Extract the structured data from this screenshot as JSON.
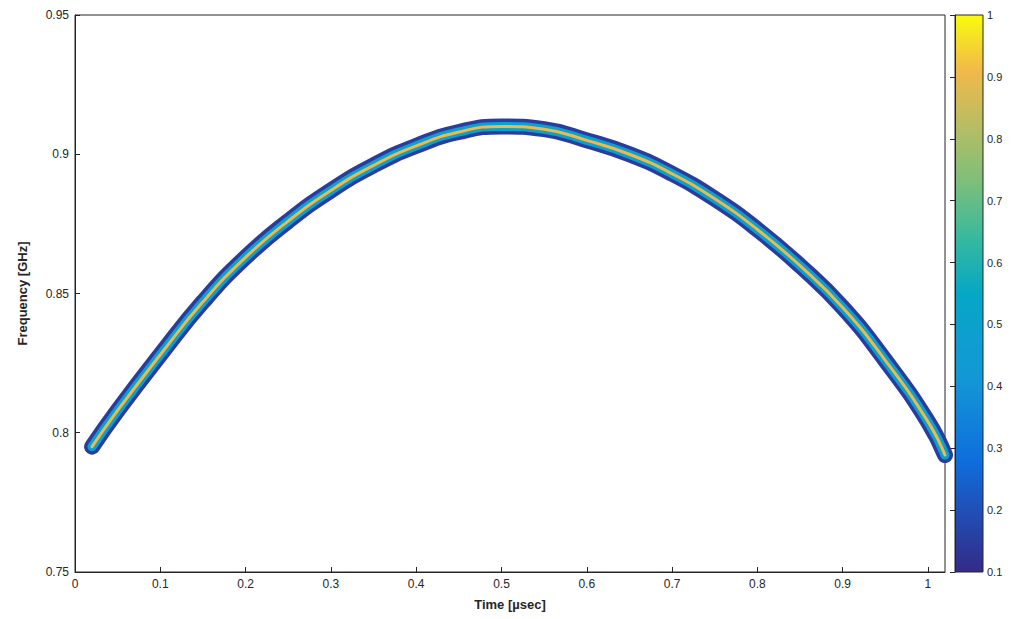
{
  "chart_data": {
    "type": "contour",
    "xlabel": "Time [µsec]",
    "ylabel": "Frequency [GHz]",
    "xlim": [
      0,
      1.02
    ],
    "xticks": [
      0,
      0.1,
      0.2,
      0.3,
      0.4,
      0.5,
      0.6,
      0.7,
      0.8,
      0.9,
      1
    ],
    "ylim": [
      0.75,
      0.95
    ],
    "yticks": [
      0.75,
      0.8,
      0.85,
      0.9,
      0.95
    ],
    "grid": false,
    "ridge": {
      "time": [
        0.02,
        0.05,
        0.1,
        0.15,
        0.2,
        0.25,
        0.3,
        0.35,
        0.4,
        0.45,
        0.5,
        0.55,
        0.6,
        0.65,
        0.7,
        0.75,
        0.8,
        0.85,
        0.9,
        0.95,
        1.0,
        1.02
      ],
      "frequency": [
        0.795,
        0.808,
        0.828,
        0.847,
        0.863,
        0.876,
        0.887,
        0.896,
        0.903,
        0.908,
        0.91,
        0.909,
        0.905,
        0.9,
        0.893,
        0.884,
        0.873,
        0.86,
        0.845,
        0.826,
        0.804,
        0.792
      ]
    },
    "contour_levels": [
      0.15,
      0.5,
      0.9
    ],
    "colorbar": {
      "range": [
        0.1,
        1
      ],
      "ticks": [
        0.1,
        0.2,
        0.3,
        0.4,
        0.5,
        0.6,
        0.7,
        0.8,
        0.9,
        1
      ]
    }
  }
}
